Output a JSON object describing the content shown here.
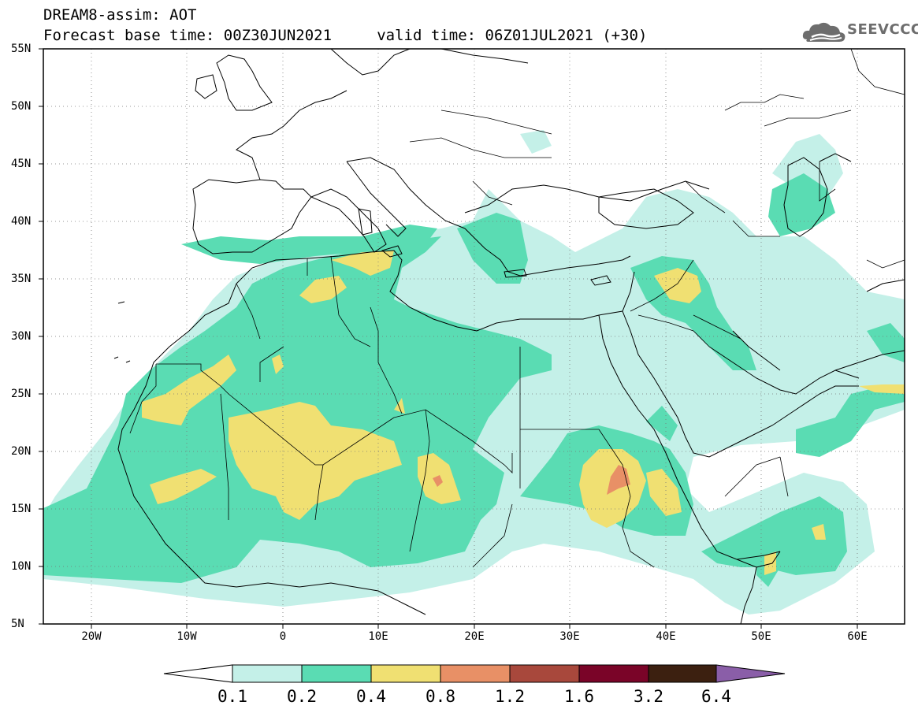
{
  "header": {
    "line1": "DREAM8-assim: AOT",
    "line2": "Forecast base time: 00Z30JUN2021     valid time: 06Z01JUL2021 (+30)"
  },
  "logo": {
    "text": "SEEVCCC",
    "icon": "cloud-logo-icon"
  },
  "map": {
    "lon_range": [
      -25,
      65
    ],
    "lat_range": [
      5,
      55
    ],
    "lat_labels": [
      "55N",
      "50N",
      "45N",
      "40N",
      "35N",
      "30N",
      "25N",
      "20N",
      "15N",
      "10N",
      "5N"
    ],
    "lon_labels": [
      "20W",
      "10W",
      "0",
      "10E",
      "20E",
      "30E",
      "40E",
      "50E",
      "60E"
    ],
    "grid": "dotted",
    "field": "Aerosol optical thickness"
  },
  "colorbar": {
    "labels": [
      "0.1",
      "0.2",
      "0.4",
      "0.8",
      "1.2",
      "1.6",
      "3.2",
      "6.4"
    ],
    "colors": {
      "c1": "#c4f0e8",
      "c2": "#5adcb3",
      "c3": "#f0e072",
      "c4": "#e89066",
      "c5": "#a8483c",
      "c6": "#7a0428",
      "c7": "#3c2010",
      "c8": "#8a5ea8"
    }
  }
}
